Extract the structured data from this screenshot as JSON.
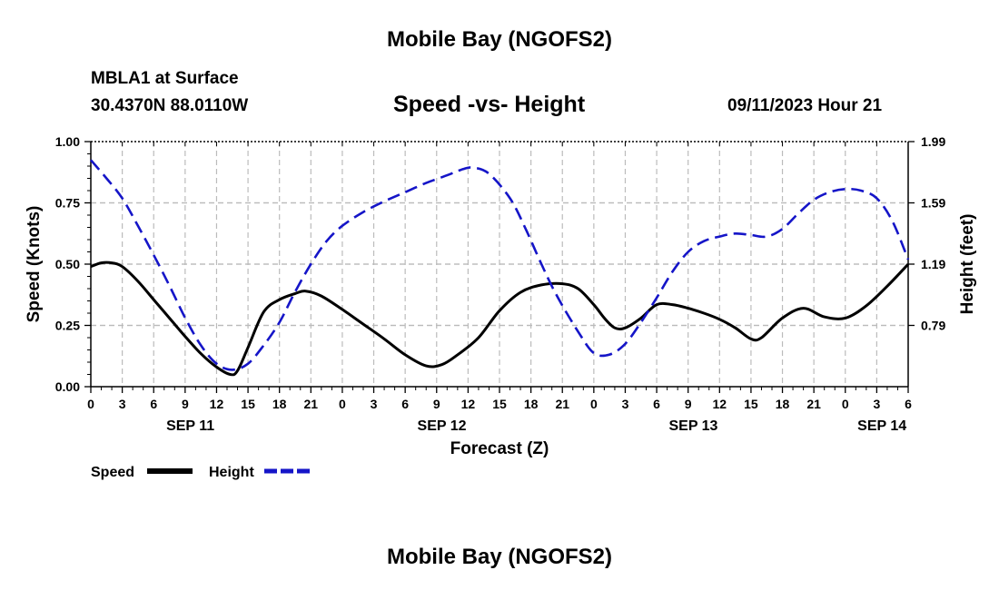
{
  "header": {
    "title": "Mobile Bay (NGOFS2)",
    "station": "MBLA1 at Surface",
    "coords": "30.4370N  88.0110W",
    "subtitle": "Speed -vs- Height",
    "timestamp": "09/11/2023 Hour 21"
  },
  "footer": {
    "title": "Mobile Bay (NGOFS2)"
  },
  "colors": {
    "speed": "#000000",
    "height": "#1515c8",
    "grid": "#bbbbbb"
  },
  "chart_data": {
    "type": "line",
    "title": "Speed -vs- Height",
    "xlabel": "Forecast (Z)",
    "ylabel": "Speed (Knots)",
    "y2label": "Height (feet)",
    "xlim": [
      0,
      78
    ],
    "ylim": [
      0,
      1
    ],
    "y2lim": [
      0.39,
      1.99
    ],
    "x_ticks": [
      0,
      3,
      6,
      9,
      12,
      15,
      18,
      21,
      24,
      27,
      30,
      33,
      36,
      39,
      42,
      45,
      48,
      51,
      54,
      57,
      60,
      63,
      66,
      69,
      72,
      75,
      78
    ],
    "x_tick_labels": [
      "0",
      "3",
      "6",
      "9",
      "12",
      "15",
      "18",
      "21",
      "0",
      "3",
      "6",
      "9",
      "12",
      "15",
      "18",
      "21",
      "0",
      "3",
      "6",
      "9",
      "12",
      "15",
      "18",
      "21",
      "0",
      "3",
      "6"
    ],
    "date_labels": [
      {
        "x": 9.5,
        "label": "SEP 11"
      },
      {
        "x": 33.5,
        "label": "SEP 12"
      },
      {
        "x": 57.5,
        "label": "SEP 13"
      },
      {
        "x": 75.5,
        "label": "SEP 14"
      }
    ],
    "y_ticks": [
      "0.00",
      "0.25",
      "0.50",
      "0.75",
      "1.00"
    ],
    "y_tick_values": [
      0,
      0.25,
      0.5,
      0.75,
      1.0
    ],
    "y2_ticks": [
      "0.79",
      "1.19",
      "1.59",
      "1.99"
    ],
    "y2_tick_values": [
      0.79,
      1.19,
      1.59,
      1.99
    ],
    "grid": true,
    "series": [
      {
        "name": "Speed",
        "axis": "left",
        "style": "solid",
        "x": [
          0,
          1,
          2,
          3,
          4.5,
          6,
          7.5,
          9,
          10.5,
          12,
          13.3,
          14,
          15,
          16.5,
          18,
          19.5,
          20.5,
          22,
          24,
          26,
          28,
          30,
          32,
          33.5,
          35,
          37,
          39,
          41,
          43,
          45,
          46.5,
          48,
          49,
          50,
          51,
          52.5,
          54,
          55.5,
          57,
          58.5,
          60,
          61.5,
          63,
          64,
          66,
          68,
          70,
          72,
          74,
          76,
          78
        ],
        "y": [
          0.49,
          0.505,
          0.505,
          0.49,
          0.43,
          0.355,
          0.28,
          0.205,
          0.135,
          0.08,
          0.05,
          0.065,
          0.16,
          0.305,
          0.355,
          0.38,
          0.39,
          0.37,
          0.315,
          0.255,
          0.195,
          0.13,
          0.085,
          0.09,
          0.13,
          0.2,
          0.31,
          0.385,
          0.415,
          0.42,
          0.4,
          0.335,
          0.28,
          0.24,
          0.24,
          0.28,
          0.335,
          0.335,
          0.32,
          0.3,
          0.275,
          0.24,
          0.195,
          0.2,
          0.28,
          0.32,
          0.285,
          0.28,
          0.33,
          0.41,
          0.5
        ]
      },
      {
        "name": "Height",
        "axis": "right",
        "style": "dashed",
        "x": [
          0,
          1.5,
          3,
          4.5,
          6,
          7.5,
          9,
          10.5,
          12,
          13.5,
          15,
          16.5,
          18,
          19.5,
          21,
          22.5,
          24,
          26,
          28,
          30,
          32,
          34,
          35.5,
          36.5,
          38,
          40,
          41.5,
          43,
          44.5,
          46.5,
          48,
          49.5,
          51,
          52.5,
          54,
          55.5,
          57,
          58.5,
          60,
          61.5,
          63,
          64.5,
          66,
          67.5,
          69,
          70.5,
          72,
          73.5,
          75,
          76.5,
          78
        ],
        "y": [
          1.87,
          1.75,
          1.62,
          1.44,
          1.25,
          1.05,
          0.84,
          0.66,
          0.54,
          0.5,
          0.54,
          0.66,
          0.81,
          1.01,
          1.19,
          1.34,
          1.44,
          1.53,
          1.6,
          1.66,
          1.72,
          1.77,
          1.81,
          1.82,
          1.78,
          1.62,
          1.42,
          1.19,
          0.98,
          0.75,
          0.61,
          0.6,
          0.67,
          0.81,
          0.97,
          1.14,
          1.27,
          1.34,
          1.37,
          1.39,
          1.38,
          1.37,
          1.42,
          1.52,
          1.61,
          1.66,
          1.68,
          1.67,
          1.62,
          1.47,
          1.22
        ]
      }
    ],
    "legend": [
      {
        "label": "Speed",
        "style": "solid"
      },
      {
        "label": "Height",
        "style": "dashed"
      }
    ]
  }
}
